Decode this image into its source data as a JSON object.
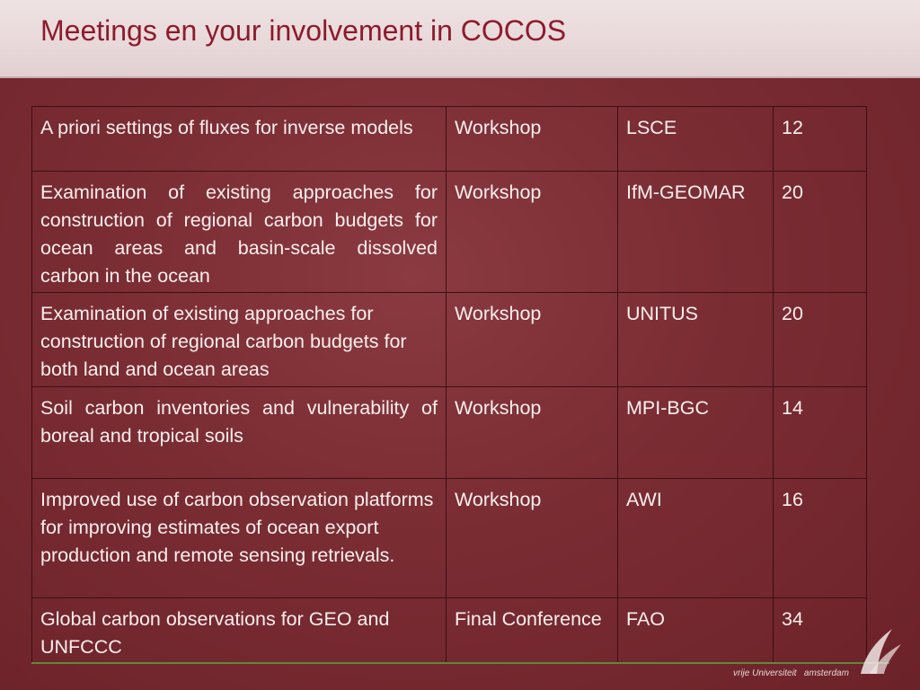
{
  "header": {
    "title": "Meetings en your involvement in COCOS"
  },
  "table": {
    "rows": [
      [
        "A priori settings of fluxes for inverse models",
        "Workshop",
        "LSCE",
        12
      ],
      [
        "Examination of existing approaches for construction of regional carbon budgets for ocean areas and basin-scale dissolved carbon in the ocean",
        "Workshop",
        "IfM-GEOMAR",
        20
      ],
      [
        "Examination of existing approaches for construction of regional carbon budgets for both land and ocean areas",
        "Workshop",
        "UNITUS",
        20
      ],
      [
        "Soil carbon inventories and vulnerability of boreal and tropical soils",
        "Workshop",
        "MPI-BGC",
        14
      ],
      [
        "Improved use of carbon observation platforms for improving estimates of ocean export production and remote sensing retrievals.",
        "Workshop",
        "AWI",
        16
      ],
      [
        "Global carbon observations for GEO and UNFCCC",
        "Final Conference",
        "FAO",
        34
      ]
    ]
  },
  "footer": {
    "logo_text": "vrije Universiteit   amsterdam"
  }
}
